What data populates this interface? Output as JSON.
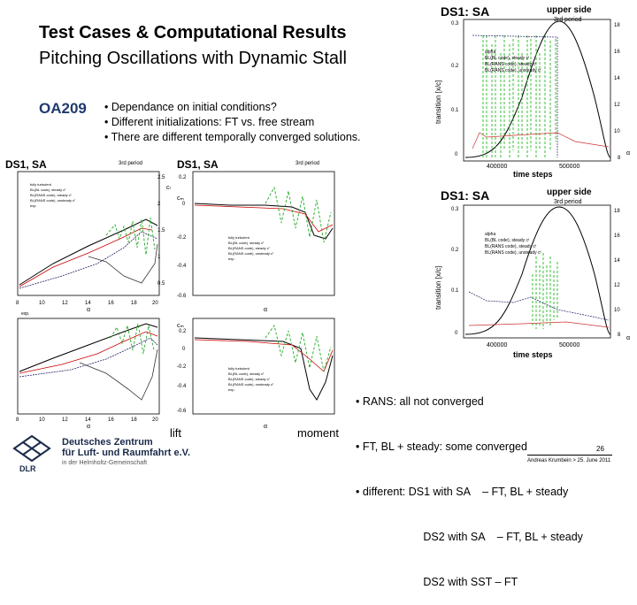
{
  "slide": {
    "title_line1": "Test Cases & Computational Results",
    "title_line2": "Pitching Oscillations with Dynamic Stall",
    "case_tag": "OA209",
    "bullets": [
      "• Dependance on initial conditions?",
      "• Different initializations: FT vs. free stream",
      "• There are different temporally converged solutions."
    ],
    "notes": [
      "• RANS: all not converged",
      "• FT, BL + steady: some converged",
      "• different: DS1 with SA    – FT, BL + steady",
      "                      DS2 with SA    – FT, BL + steady",
      "                      DS2 with SST – FT"
    ],
    "caption_lift": "lift",
    "caption_moment": "moment",
    "page_number": "26",
    "footer": "Andreas Krumbein > 25. June 2011",
    "logo": {
      "line1": "Deutsches Zentrum",
      "line2": "für Luft- und Raumfahrt e.V.",
      "line3": "in der Helmholtz-Gemeinschaft",
      "mark": "DLR"
    }
  },
  "plots": {
    "ds1_label": "DS1, SA",
    "third_period": "3rd period",
    "left_panel_label": "DS1, SA",
    "legend_ct": [
      "fully turbulent",
      "BL(BL code), steady cᶠ",
      "BL(RANS code), steady cᶠ",
      "BL(RANS code), unsteady cᶠ",
      "exp."
    ],
    "legend_cm": [
      "fully turbulent",
      "BL(BL code), steady cᶠ",
      "BL(RANS code), steady cᶠ",
      "BL(RANS code), unsteady cᶠ",
      "exp."
    ],
    "alpha_label": "α",
    "cl_label": "cₗ",
    "cm_label": "cₘ",
    "x_ticks": [
      "8",
      "10",
      "12",
      "14",
      "16",
      "18",
      "20"
    ],
    "cl_ticks": [
      "2.5",
      "2",
      "1.5",
      "1",
      "0.5"
    ],
    "cm_ticks": [
      "0.2",
      "0",
      "-0.2",
      "-0.4",
      "-0.6"
    ],
    "exp_label": "exp."
  },
  "transition": {
    "title": "DS1: SA",
    "upper_side": "upper side",
    "period": "3rd period",
    "ylabel": "transition [x/c]",
    "xlabel": "time steps",
    "y_ticks": [
      "0.3",
      "0.2",
      "0.1",
      "0"
    ],
    "y2_ticks": [
      "18",
      "16",
      "14",
      "12",
      "10",
      "8"
    ],
    "x_ticks": [
      "400000",
      "500000"
    ],
    "alpha_label": "α",
    "legend_top": [
      "alpha",
      "BL(BL code), steady cᶠ",
      "BL(RANS code), steady cᶠ",
      "BL(RANS code), unsteady cᶠ"
    ],
    "legend_bottom": [
      "alpha",
      "BL(BL code), steady cᶠ",
      "BL(RANS code), steady cᶠ",
      "BL(RANS code), unsteady cᶠ"
    ]
  }
}
